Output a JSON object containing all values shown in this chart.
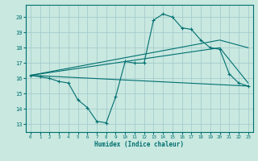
{
  "xlabel": "Humidex (Indice chaleur)",
  "background_color": "#c8e8e0",
  "grid_color": "#a0c8c8",
  "line_color": "#007070",
  "xlim": [
    -0.5,
    23.5
  ],
  "ylim": [
    12.5,
    20.8
  ],
  "yticks": [
    13,
    14,
    15,
    16,
    17,
    18,
    19,
    20
  ],
  "xticks": [
    0,
    1,
    2,
    3,
    4,
    5,
    6,
    7,
    8,
    9,
    10,
    11,
    12,
    13,
    14,
    15,
    16,
    17,
    18,
    19,
    20,
    21,
    22,
    23
  ],
  "series1_x": [
    0,
    1,
    2,
    3,
    4,
    5,
    6,
    7,
    8,
    9,
    10,
    11,
    12,
    13,
    14,
    15,
    16,
    17,
    18,
    19,
    20,
    21,
    22,
    23
  ],
  "series1_y": [
    16.2,
    16.1,
    16.0,
    15.8,
    15.7,
    14.6,
    14.1,
    13.2,
    13.1,
    14.8,
    17.1,
    17.0,
    17.0,
    19.8,
    20.2,
    20.0,
    19.3,
    19.2,
    18.5,
    18.0,
    17.9,
    16.3,
    15.7,
    15.5
  ],
  "line1_x": [
    0,
    23
  ],
  "line1_y": [
    16.2,
    15.5
  ],
  "line2_x": [
    0,
    20,
    23
  ],
  "line2_y": [
    16.2,
    18.0,
    15.7
  ],
  "line3_x": [
    0,
    20,
    23
  ],
  "line3_y": [
    16.2,
    18.5,
    18.0
  ]
}
